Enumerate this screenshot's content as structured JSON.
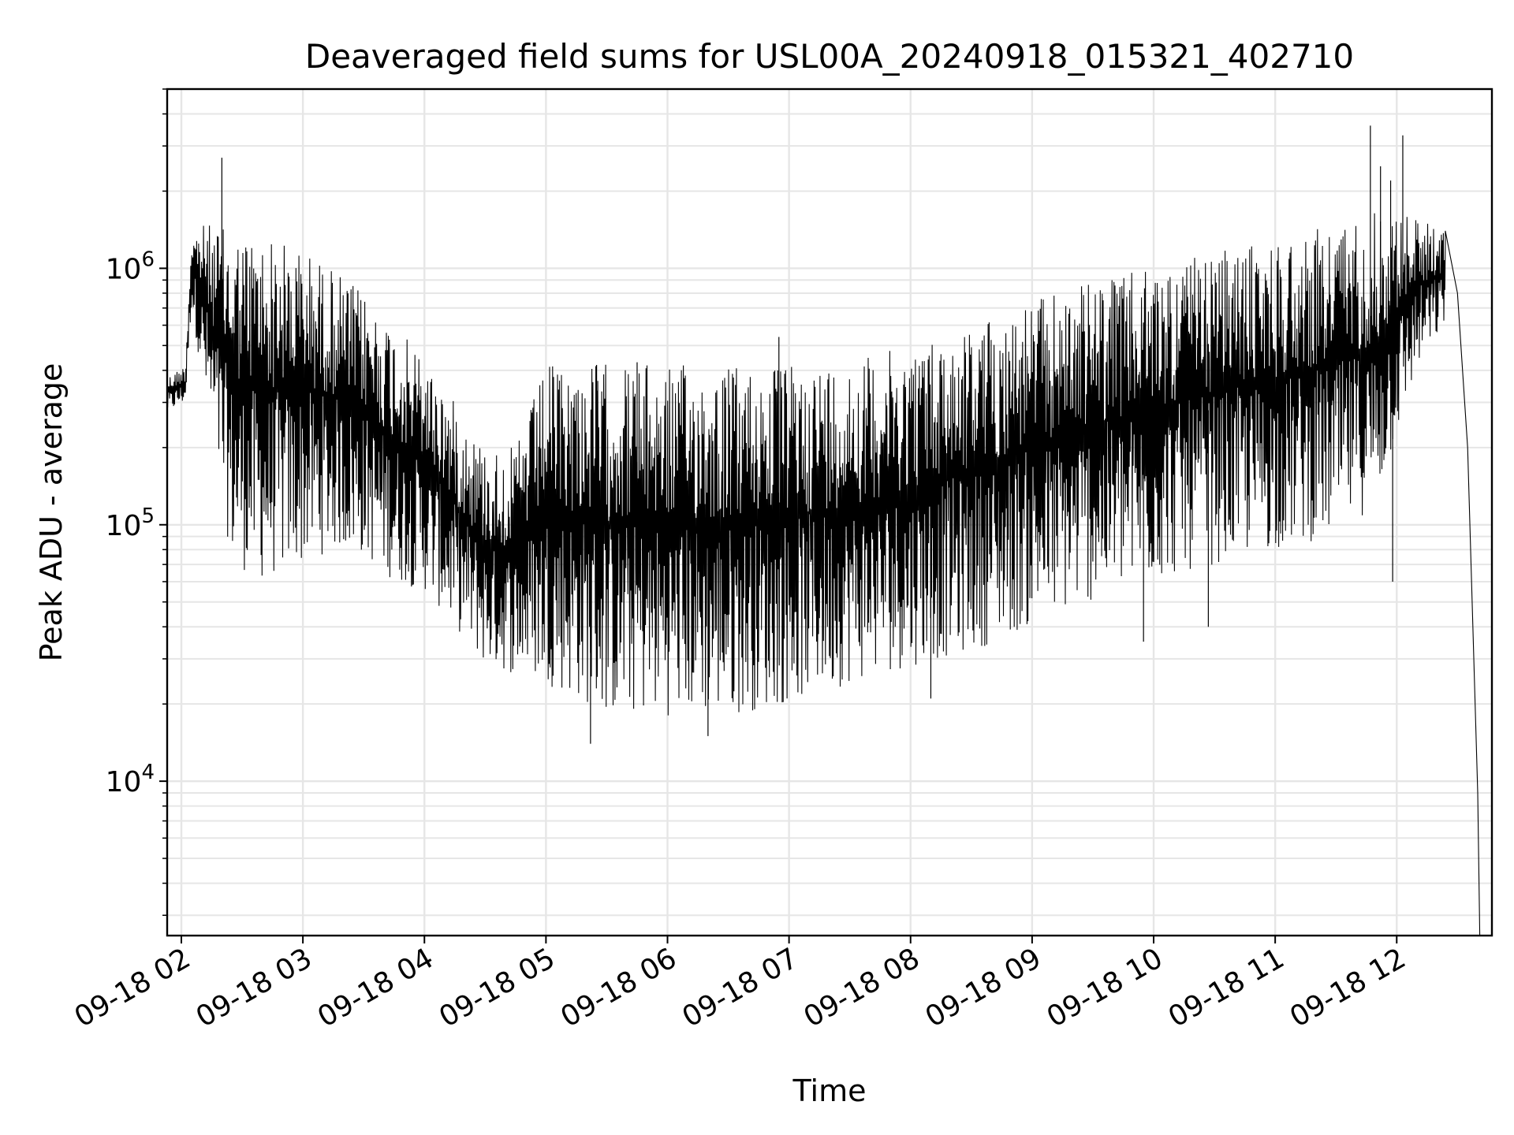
{
  "chart_data": {
    "type": "line",
    "title": "Deaveraged field sums for USL00A_20240918_015321_402710",
    "xlabel": "Time",
    "ylabel": "Peak ADU - average",
    "yscale": "log",
    "grid": true,
    "grid_minor": true,
    "line_color": "#000000",
    "grid_color": "#e6e6e6",
    "xlim": [
      "2024-09-18 01:53",
      "2024-09-18 12:47"
    ],
    "ylim": [
      2500,
      5000000
    ],
    "x_ticks": [
      {
        "t": "2024-09-18 02:00",
        "label": "09-18 02"
      },
      {
        "t": "2024-09-18 03:00",
        "label": "09-18 03"
      },
      {
        "t": "2024-09-18 04:00",
        "label": "09-18 04"
      },
      {
        "t": "2024-09-18 05:00",
        "label": "09-18 05"
      },
      {
        "t": "2024-09-18 06:00",
        "label": "09-18 06"
      },
      {
        "t": "2024-09-18 07:00",
        "label": "09-18 07"
      },
      {
        "t": "2024-09-18 08:00",
        "label": "09-18 08"
      },
      {
        "t": "2024-09-18 09:00",
        "label": "09-18 09"
      },
      {
        "t": "2024-09-18 10:00",
        "label": "09-18 10"
      },
      {
        "t": "2024-09-18 11:00",
        "label": "09-18 11"
      },
      {
        "t": "2024-09-18 12:00",
        "label": "09-18 12"
      }
    ],
    "y_ticks": [
      {
        "value": 10000,
        "base": "10",
        "exp": "4"
      },
      {
        "value": 100000,
        "base": "10",
        "exp": "5"
      },
      {
        "value": 1000000,
        "base": "10",
        "exp": "6"
      }
    ],
    "series": [
      {
        "upper": [
          [
            "2024-09-18 01:53",
            380000
          ],
          [
            "2024-09-18 02:02",
            420000
          ],
          [
            "2024-09-18 02:05",
            1400000
          ],
          [
            "2024-09-18 02:12",
            1500000
          ],
          [
            "2024-09-18 02:25",
            1400000
          ],
          [
            "2024-09-18 02:40",
            1350000
          ],
          [
            "2024-09-18 03:00",
            1200000
          ],
          [
            "2024-09-18 03:15",
            1000000
          ],
          [
            "2024-09-18 03:30",
            800000
          ],
          [
            "2024-09-18 03:45",
            600000
          ],
          [
            "2024-09-18 04:00",
            450000
          ],
          [
            "2024-09-18 04:15",
            300000
          ],
          [
            "2024-09-18 04:30",
            200000
          ],
          [
            "2024-09-18 04:45",
            200000
          ],
          [
            "2024-09-18 05:00",
            420000
          ],
          [
            "2024-09-18 05:30",
            430000
          ],
          [
            "2024-09-18 06:00",
            420000
          ],
          [
            "2024-09-18 06:30",
            420000
          ],
          [
            "2024-09-18 07:00",
            420000
          ],
          [
            "2024-09-18 07:30",
            440000
          ],
          [
            "2024-09-18 08:00",
            500000
          ],
          [
            "2024-09-18 08:30",
            600000
          ],
          [
            "2024-09-18 09:00",
            750000
          ],
          [
            "2024-09-18 09:30",
            900000
          ],
          [
            "2024-09-18 10:00",
            1000000
          ],
          [
            "2024-09-18 10:30",
            1150000
          ],
          [
            "2024-09-18 11:00",
            1300000
          ],
          [
            "2024-09-18 11:30",
            1500000
          ],
          [
            "2024-09-18 11:50",
            1700000
          ],
          [
            "2024-09-18 12:10",
            1600000
          ],
          [
            "2024-09-18 12:24",
            1400000
          ]
        ],
        "lower": [
          [
            "2024-09-18 01:53",
            270000
          ],
          [
            "2024-09-18 02:02",
            300000
          ],
          [
            "2024-09-18 02:05",
            700000
          ],
          [
            "2024-09-18 02:12",
            300000
          ],
          [
            "2024-09-18 02:25",
            70000
          ],
          [
            "2024-09-18 02:40",
            60000
          ],
          [
            "2024-09-18 03:00",
            70000
          ],
          [
            "2024-09-18 03:15",
            80000
          ],
          [
            "2024-09-18 03:30",
            75000
          ],
          [
            "2024-09-18 03:45",
            60000
          ],
          [
            "2024-09-18 04:00",
            55000
          ],
          [
            "2024-09-18 04:15",
            40000
          ],
          [
            "2024-09-18 04:30",
            28000
          ],
          [
            "2024-09-18 04:45",
            26000
          ],
          [
            "2024-09-18 05:00",
            24000
          ],
          [
            "2024-09-18 05:30",
            18000
          ],
          [
            "2024-09-18 06:00",
            18000
          ],
          [
            "2024-09-18 06:30",
            18000
          ],
          [
            "2024-09-18 07:00",
            20000
          ],
          [
            "2024-09-18 07:30",
            24000
          ],
          [
            "2024-09-18 08:00",
            28000
          ],
          [
            "2024-09-18 08:30",
            32000
          ],
          [
            "2024-09-18 09:00",
            40000
          ],
          [
            "2024-09-18 09:30",
            50000
          ],
          [
            "2024-09-18 10:00",
            60000
          ],
          [
            "2024-09-18 10:30",
            70000
          ],
          [
            "2024-09-18 11:00",
            80000
          ],
          [
            "2024-09-18 11:30",
            90000
          ],
          [
            "2024-09-18 11:50",
            120000
          ],
          [
            "2024-09-18 12:10",
            400000
          ],
          [
            "2024-09-18 12:24",
            600000
          ]
        ],
        "spikes": [
          [
            "2024-09-18 02:20",
            2700000
          ],
          [
            "2024-09-18 05:25",
            420000
          ],
          [
            "2024-09-18 05:45",
            430000
          ],
          [
            "2024-09-18 06:55",
            540000
          ],
          [
            "2024-09-18 11:47",
            3600000
          ],
          [
            "2024-09-18 11:52",
            2500000
          ],
          [
            "2024-09-18 12:03",
            3300000
          ],
          [
            "2024-09-18 11:57",
            2200000
          ],
          [
            "2024-09-18 09:55",
            35000
          ],
          [
            "2024-09-18 10:27",
            40000
          ],
          [
            "2024-09-18 05:22",
            14000
          ],
          [
            "2024-09-18 06:20",
            15000
          ],
          [
            "2024-09-18 11:58",
            60000
          ],
          [
            "2024-09-18 08:10",
            21000
          ]
        ],
        "tail": [
          [
            "2024-09-18 12:24",
            1400000
          ],
          [
            "2024-09-18 12:30",
            800000
          ],
          [
            "2024-09-18 12:35",
            200000
          ],
          [
            "2024-09-18 12:40",
            9000
          ],
          [
            "2024-09-18 12:41",
            2500
          ]
        ]
      }
    ]
  }
}
